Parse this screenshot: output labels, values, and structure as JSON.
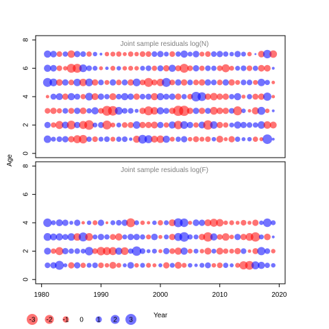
{
  "colors": {
    "positive": "#ff0000",
    "negative": "#0000ff",
    "frame": "#000000",
    "title": "#808080"
  },
  "bubble_alpha": 0.55,
  "chart_data": [
    {
      "type": "scatter",
      "encoding": "bubble: area ~ |residual|, red = positive, blue = negative",
      "title": "Joint sample residuals log(N)",
      "ylabel": "Age",
      "xlim": [
        1979,
        2021
      ],
      "ylim": [
        -0.3,
        8.3
      ],
      "yticks": [
        "0",
        "2",
        "4",
        "6",
        "8"
      ],
      "grid": false,
      "series": [
        {
          "age": 1,
          "years": [
            1981,
            1982,
            1983,
            1984,
            1985,
            1986,
            1987,
            1988,
            1989,
            1990,
            1991,
            1992,
            1993,
            1994,
            1995,
            1996,
            1997,
            1998,
            1999,
            2000,
            2001,
            2002,
            2003,
            2004,
            2005,
            2006,
            2007,
            2008,
            2009,
            2010,
            2011,
            2012,
            2013,
            2014,
            2015,
            2016,
            2017,
            2018,
            2019
          ],
          "residuals": [
            -1.4,
            -0.6,
            -0.8,
            -1.0,
            1.0,
            1.6,
            1.8,
            -0.7,
            0.8,
            -0.6,
            -0.8,
            0.6,
            -0.7,
            -0.8,
            -0.3,
            1.3,
            -1.9,
            -1.6,
            1.2,
            1.4,
            -1.3,
            0.6,
            -0.7,
            -1.0,
            0.5,
            0.9,
            0.6,
            0.8,
            -0.5,
            1.2,
            0.4,
            1.0,
            -0.7,
            -0.4,
            -0.5,
            0.7,
            0.4,
            -2.3,
            -0.2
          ]
        },
        {
          "age": 2,
          "years": [
            1981,
            1982,
            1983,
            1984,
            1985,
            1986,
            1987,
            1988,
            1989,
            1990,
            1991,
            1992,
            1993,
            1994,
            1995,
            1996,
            1997,
            1998,
            1999,
            2000,
            2001,
            2002,
            2003,
            2004,
            2005,
            2006,
            2007,
            2008,
            2009,
            2010,
            2011,
            2012,
            2013,
            2014,
            2015,
            2016,
            2017,
            2018,
            2019
          ],
          "residuals": [
            -1.0,
            0.7,
            1.6,
            -1.2,
            1.9,
            -1.0,
            1.6,
            2.3,
            -0.6,
            -0.9,
            2.0,
            0.6,
            -0.6,
            0.8,
            0.9,
            -1.4,
            1.0,
            1.0,
            1.2,
            -1.0,
            0.7,
            -1.3,
            1.8,
            -1.5,
            -1.0,
            0.7,
            -1.2,
            2.2,
            -1.4,
            1.0,
            0.7,
            -0.6,
            -1.3,
            -1.0,
            -0.8,
            -0.7,
            -1.4,
            1.4,
            1.2
          ]
        },
        {
          "age": 3,
          "years": [
            1981,
            1982,
            1983,
            1984,
            1985,
            1986,
            1987,
            1988,
            1989,
            1990,
            1991,
            1992,
            1993,
            1994,
            1995,
            1996,
            1997,
            1998,
            1999,
            2000,
            2001,
            2002,
            2003,
            2004,
            2005,
            2006,
            2007,
            2008,
            2009,
            2010,
            2011,
            2012,
            2013,
            2014,
            2015,
            2016,
            2017,
            2018,
            2019
          ],
          "residuals": [
            0.8,
            1.0,
            0.7,
            -0.8,
            0.9,
            -1.0,
            1.1,
            -0.7,
            -1.3,
            0.8,
            2.4,
            2.3,
            -1.5,
            -0.8,
            -0.8,
            -0.4,
            1.0,
            2.0,
            1.4,
            -1.3,
            -0.9,
            1.0,
            2.6,
            2.6,
            1.0,
            -1.0,
            1.0,
            -0.9,
            1.5,
            1.1,
            1.0,
            -0.8,
            2.0,
            -0.5,
            0.3,
            1.3,
            -1.6,
            0.5,
            -0.2
          ]
        },
        {
          "age": 4,
          "years": [
            1981,
            1982,
            1983,
            1984,
            1985,
            1986,
            1987,
            1988,
            1989,
            1990,
            1991,
            1992,
            1993,
            1994,
            1995,
            1996,
            1997,
            1998,
            1999,
            2000,
            2001,
            2002,
            2003,
            2004,
            2005,
            2006,
            2007,
            2008,
            2009,
            2010,
            2011,
            2012,
            2013,
            2014,
            2015,
            2016,
            2017,
            2018,
            2019
          ],
          "residuals": [
            0.3,
            -0.9,
            -1.2,
            1.0,
            -1.3,
            -0.9,
            0.7,
            -1.5,
            1.2,
            -1.0,
            -0.7,
            1.2,
            -0.8,
            -1.3,
            -1.0,
            1.0,
            -0.8,
            -0.9,
            1.3,
            -1.3,
            -0.9,
            -1.0,
            1.0,
            -0.7,
            0.8,
            -2.3,
            -1.9,
            1.0,
            1.4,
            1.0,
            1.0,
            -0.7,
            -1.3,
            0.4,
            -0.7,
            0.9,
            1.0,
            -1.7,
            0.3
          ]
        },
        {
          "age": 5,
          "years": [
            1981,
            1982,
            1983,
            1984,
            1985,
            1986,
            1987,
            1988,
            1989,
            1990,
            1991,
            1992,
            1993,
            1994,
            1995,
            1996,
            1997,
            1998,
            1999,
            2000,
            2001,
            2002,
            2003,
            2004,
            2005,
            2006,
            2007,
            2008,
            2009,
            2010,
            2011,
            2012,
            2013,
            2014,
            2015,
            2016,
            2017,
            2018,
            2019
          ],
          "residuals": [
            -2.0,
            -1.5,
            1.1,
            -1.0,
            0.8,
            -1.4,
            1.4,
            -1.5,
            1.0,
            -0.8,
            0.6,
            -1.0,
            0.8,
            -0.9,
            1.0,
            -1.5,
            0.8,
            2.0,
            0.9,
            1.4,
            -2.0,
            0.8,
            -1.0,
            1.0,
            -0.8,
            0.8,
            1.0,
            -1.0,
            -0.8,
            0.8,
            -1.0,
            1.0,
            0.6,
            -0.8,
            -0.8,
            0.6,
            -1.4,
            -0.7,
            0.3
          ]
        },
        {
          "age": 6,
          "years": [
            1981,
            1982,
            1983,
            1984,
            1985,
            1986,
            1987,
            1988,
            1989,
            1990,
            1991,
            1992,
            1993,
            1994,
            1995,
            1996,
            1997,
            1998,
            1999,
            2000,
            2001,
            2002,
            2003,
            2004,
            2005,
            2006,
            2007,
            2008,
            2009,
            2010,
            2011,
            2012,
            2013,
            2014,
            2015,
            2016,
            2017,
            2018,
            2019
          ],
          "residuals": [
            -1.3,
            -1.1,
            0.8,
            0.5,
            2.0,
            2.0,
            -1.5,
            -0.8,
            -0.6,
            0.4,
            -0.3,
            0.6,
            -0.5,
            0.5,
            0.6,
            0.5,
            -0.6,
            -0.8,
            0.7,
            -0.9,
            1.0,
            -1.3,
            0.9,
            2.0,
            0.8,
            -1.0,
            0.7,
            -0.8,
            -0.7,
            0.8,
            1.6,
            0.6,
            -0.6,
            -0.8,
            0.8,
            -0.7,
            1.1,
            1.1,
            -0.2
          ]
        },
        {
          "age": 7,
          "years": [
            1981,
            1982,
            1983,
            1984,
            1985,
            1986,
            1987,
            1988,
            1989,
            1990,
            1991,
            1992,
            1993,
            1994,
            1995,
            1996,
            1997,
            1998,
            1999,
            2000,
            2001,
            2002,
            2003,
            2004,
            2005,
            2006,
            2007,
            2008,
            2009,
            2010,
            2011,
            2012,
            2013,
            2014,
            2015,
            2016,
            2017,
            2018,
            2019
          ],
          "residuals": [
            -1.3,
            -1.1,
            0.8,
            -0.7,
            1.4,
            -1.0,
            -0.8,
            0.7,
            -0.5,
            -0.2,
            0.5,
            0.6,
            0.7,
            0.4,
            0.7,
            0.5,
            0.8,
            0.8,
            -0.8,
            -1.0,
            -0.6,
            0.8,
            -0.7,
            -1.3,
            -0.6,
            -1.1,
            0.6,
            0.8,
            -0.8,
            -1.0,
            -0.7,
            -0.5,
            -1.0,
            -0.6,
            0.5,
            -0.1,
            1.1,
            -1.8,
            1.4
          ]
        }
      ]
    },
    {
      "type": "scatter",
      "encoding": "bubble: area ~ |residual|, red = positive, blue = negative",
      "title": "Joint sample residuals log(F)",
      "xlabel": "Year",
      "xlim": [
        1979,
        2021
      ],
      "ylim": [
        -0.3,
        8.3
      ],
      "xticks": [
        "1980",
        "1990",
        "2000",
        "2010",
        "2020"
      ],
      "yticks": [
        "0",
        "2",
        "4",
        "6",
        "8"
      ],
      "grid": false,
      "series": [
        {
          "age": 1,
          "years": [
            1981,
            1982,
            1983,
            1984,
            1985,
            1986,
            1987,
            1988,
            1989,
            1990,
            1991,
            1992,
            1993,
            1994,
            1995,
            1996,
            1997,
            1998,
            1999,
            2000,
            2001,
            2002,
            2003,
            2004,
            2005,
            2006,
            2007,
            2008,
            2009,
            2010,
            2011,
            2012,
            2013,
            2014,
            2015,
            2016,
            2017,
            2018,
            2019
          ],
          "residuals": [
            -0.8,
            -1.0,
            -2.0,
            -0.4,
            1.0,
            -1.0,
            0.7,
            -0.6,
            -0.8,
            0.8,
            0.5,
            1.2,
            0.6,
            -0.4,
            -1.1,
            0.5,
            -0.6,
            0.6,
            0.4,
            -0.4,
            1.0,
            -0.6,
            1.2,
            0.6,
            -0.5,
            -0.3,
            -0.6,
            -0.9,
            0.5,
            0.8,
            -0.7,
            -0.4,
            0.6,
            1.7,
            1.9,
            -1.6,
            -1.3,
            -0.7,
            -0.5
          ]
        },
        {
          "age": 2,
          "years": [
            1981,
            1982,
            1983,
            1984,
            1985,
            1986,
            1987,
            1988,
            1989,
            1990,
            1991,
            1992,
            1993,
            1994,
            1995,
            1996,
            1997,
            1998,
            1999,
            2000,
            2001,
            2002,
            2003,
            2004,
            2005,
            2006,
            2007,
            2008,
            2009,
            2010,
            2011,
            2012,
            2013,
            2014,
            2015,
            2016,
            2017,
            2018,
            2019
          ],
          "residuals": [
            -1.2,
            0.7,
            1.6,
            -1.0,
            -0.7,
            -0.8,
            -0.6,
            -1.8,
            0.8,
            1.8,
            1.6,
            1.6,
            -1.3,
            1.5,
            -0.7,
            -2.2,
            -0.8,
            -0.4,
            -0.6,
            0.4,
            -1.0,
            0.8,
            1.3,
            -1.3,
            0.6,
            -0.6,
            0.5,
            1.2,
            -0.6,
            1.2,
            0.7,
            0.6,
            1.0,
            -0.8,
            0.3,
            0.9,
            -1.7,
            -0.8,
            0.5
          ]
        },
        {
          "age": 3,
          "years": [
            1981,
            1982,
            1983,
            1984,
            1985,
            1986,
            1987,
            1988,
            1989,
            1990,
            1991,
            1992,
            1993,
            1994,
            1995,
            1996,
            1997,
            1998,
            1999,
            2000,
            2001,
            2002,
            2003,
            2004,
            2005,
            2006,
            2007,
            2008,
            2009,
            2010,
            2011,
            2012,
            2013,
            2014,
            2015,
            2016,
            2017,
            2018,
            2019
          ],
          "residuals": [
            -1.5,
            -1.2,
            -1.3,
            -0.9,
            -1.4,
            1.4,
            -2.0,
            1.5,
            -0.6,
            -1.0,
            -0.7,
            0.9,
            1.3,
            -0.6,
            -1.0,
            -1.0,
            -0.7,
            0.6,
            -1.1,
            0.4,
            -0.6,
            1.0,
            -1.6,
            -2.3,
            -0.7,
            -0.6,
            1.0,
            2.2,
            -1.3,
            0.8,
            1.4,
            0.5,
            -1.0,
            1.0,
            1.5,
            2.2,
            -0.6,
            1.1,
            -0.2
          ]
        },
        {
          "age": 4,
          "years": [
            1981,
            1982,
            1983,
            1984,
            1985,
            1986,
            1987,
            1988,
            1989,
            1990,
            1991,
            1992,
            1993,
            1994,
            1995,
            1996,
            1997,
            1998,
            1999,
            2000,
            2001,
            2002,
            2003,
            2004,
            2005,
            2006,
            2007,
            2008,
            2009,
            2010,
            2011,
            2012,
            2013,
            2014,
            2015,
            2016,
            2017,
            2018,
            2019
          ],
          "residuals": [
            -1.8,
            -0.6,
            -1.2,
            -1.0,
            -0.4,
            -1.0,
            0.3,
            -0.5,
            0.6,
            -1.0,
            0.2,
            -0.6,
            -0.8,
            -1.0,
            2.0,
            -0.6,
            0.5,
            0.3,
            -0.5,
            0.7,
            -0.6,
            1.2,
            -2.0,
            -1.8,
            0.4,
            -1.1,
            -1.0,
            1.2,
            1.6,
            1.4,
            0.5,
            0.6,
            0.4,
            0.8,
            0.4,
            1.0,
            -0.5,
            -1.8,
            -0.6
          ]
        }
      ]
    }
  ],
  "legend": {
    "items": [
      {
        "value": -3,
        "label": "-3"
      },
      {
        "value": -2,
        "label": "-2"
      },
      {
        "value": -1,
        "label": "-1"
      },
      {
        "value": 0,
        "label": "0"
      },
      {
        "value": 1,
        "label": "1"
      },
      {
        "value": 2,
        "label": "2"
      },
      {
        "value": 3,
        "label": "3"
      }
    ]
  }
}
